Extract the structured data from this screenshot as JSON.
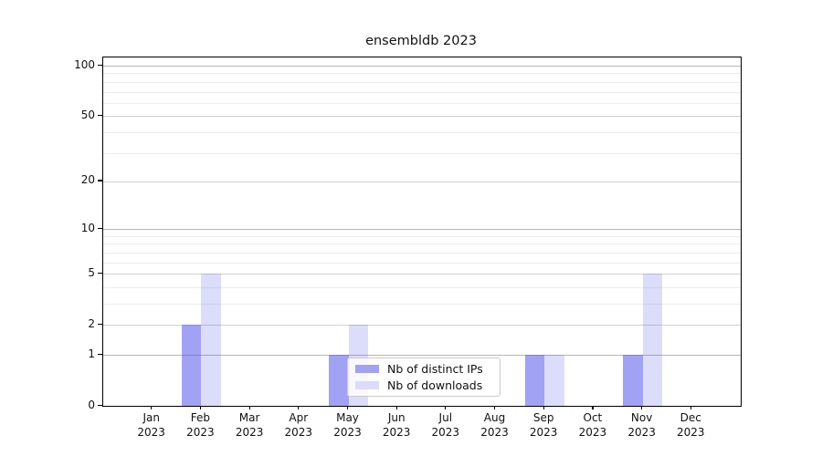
{
  "chart_data": {
    "type": "bar",
    "title": "ensembldb 2023",
    "categories": [
      "Jan",
      "Feb",
      "Mar",
      "Apr",
      "May",
      "Jun",
      "Jul",
      "Aug",
      "Sep",
      "Oct",
      "Nov",
      "Dec"
    ],
    "x_year": "2023",
    "series": [
      {
        "name": "Nb of distinct IPs",
        "key": "distinct-ips",
        "color": "#a2a2ee",
        "fill": "rgba(80,80,235,0.53)",
        "values": [
          0,
          2,
          0,
          0,
          1,
          0,
          0,
          0,
          1,
          0,
          1,
          0
        ]
      },
      {
        "name": "Nb of downloads",
        "key": "downloads",
        "color": "#dcdcf8",
        "fill": "rgba(80,80,235,0.20)",
        "values": [
          0,
          5,
          0,
          0,
          2,
          0,
          0,
          0,
          1,
          0,
          5,
          0
        ]
      }
    ],
    "xlabel": "",
    "ylabel": "",
    "y_scale": "log1p",
    "ylim": [
      0,
      112
    ],
    "y_ticks": [
      0,
      1,
      2,
      5,
      10,
      20,
      50,
      100
    ],
    "y_minor_ticks": [
      3,
      4,
      6,
      7,
      8,
      9,
      30,
      40,
      60,
      70,
      80,
      90
    ],
    "grid": "on",
    "grid_colors": {
      "decade": "#b6b6b6",
      "major": "#d2d2d2",
      "minor": "#ececec"
    },
    "legend_position": "lower center"
  }
}
